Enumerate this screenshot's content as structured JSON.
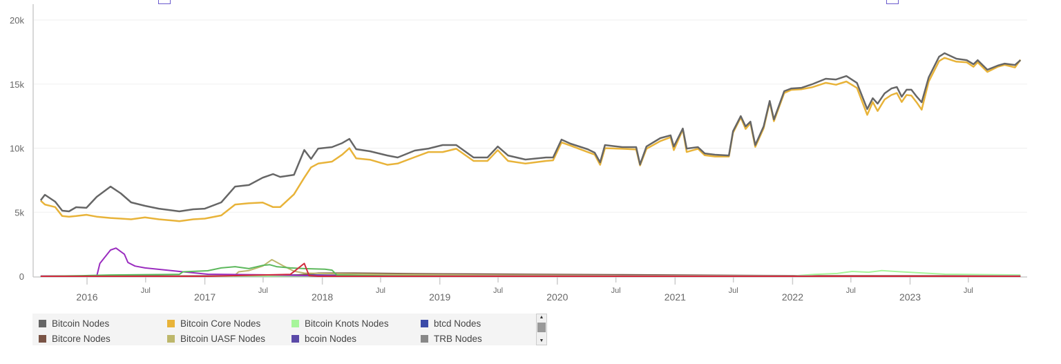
{
  "chart_data": {
    "type": "line",
    "title": "",
    "xlabel": "",
    "ylabel": "",
    "ylim": [
      0,
      20000
    ],
    "xlim": [
      "2015-08-01",
      "2023-12-31"
    ],
    "y_ticks": [
      "0",
      "5k",
      "10k",
      "15k",
      "20k"
    ],
    "y_tick_values": [
      0,
      5000,
      10000,
      15000,
      20000
    ],
    "x_ticks": [
      {
        "label": "2016",
        "date": "2016-01-01",
        "major": true
      },
      {
        "label": "Jul",
        "date": "2016-07-01",
        "major": false
      },
      {
        "label": "2017",
        "date": "2017-01-01",
        "major": true
      },
      {
        "label": "Jul",
        "date": "2017-07-01",
        "major": false
      },
      {
        "label": "2018",
        "date": "2018-01-01",
        "major": true
      },
      {
        "label": "Jul",
        "date": "2018-07-01",
        "major": false
      },
      {
        "label": "2019",
        "date": "2019-01-01",
        "major": true
      },
      {
        "label": "Jul",
        "date": "2019-07-01",
        "major": false
      },
      {
        "label": "2020",
        "date": "2020-01-01",
        "major": true
      },
      {
        "label": "Jul",
        "date": "2020-07-01",
        "major": false
      },
      {
        "label": "2021",
        "date": "2021-01-01",
        "major": true
      },
      {
        "label": "Jul",
        "date": "2021-07-01",
        "major": false
      },
      {
        "label": "2022",
        "date": "2022-01-01",
        "major": true
      },
      {
        "label": "Jul",
        "date": "2022-07-01",
        "major": false
      },
      {
        "label": "2023",
        "date": "2023-01-01",
        "major": true
      },
      {
        "label": "Jul",
        "date": "2023-07-01",
        "major": false
      }
    ],
    "grid": true,
    "legend_position": "bottom",
    "series": [
      {
        "name": "Bitcoin Nodes",
        "color": "#666666",
        "x": [
          "2015-08-10",
          "2015-08-23",
          "2015-09-24",
          "2015-10-16",
          "2015-11-06",
          "2015-11-28",
          "2015-12-30",
          "2016-01-31",
          "2016-03-14",
          "2016-04-15",
          "2016-05-17",
          "2016-06-29",
          "2016-08-11",
          "2016-10-14",
          "2016-11-26",
          "2017-01-01",
          "2017-02-21",
          "2017-04-05",
          "2017-05-18",
          "2017-06-30",
          "2017-08-01",
          "2017-08-23",
          "2017-10-05",
          "2017-11-06",
          "2017-11-27",
          "2017-12-19",
          "2018-01-31",
          "2018-03-04",
          "2018-03-26",
          "2018-04-16",
          "2018-05-29",
          "2018-07-22",
          "2018-08-23",
          "2018-10-15",
          "2018-11-27",
          "2019-01-10",
          "2019-02-21",
          "2019-04-16",
          "2019-05-29",
          "2019-06-30",
          "2019-08-01",
          "2019-09-24",
          "2019-11-27",
          "2019-12-19",
          "2020-01-14",
          "2020-02-11",
          "2020-04-04",
          "2020-04-26",
          "2020-05-13",
          "2020-05-28",
          "2020-07-21",
          "2020-09-02",
          "2020-09-14",
          "2020-10-04",
          "2020-11-16",
          "2020-12-18",
          "2020-12-28",
          "2021-01-25",
          "2021-02-06",
          "2021-03-13",
          "2021-04-03",
          "2021-05-05",
          "2021-06-17",
          "2021-06-30",
          "2021-07-24",
          "2021-08-08",
          "2021-08-23",
          "2021-09-07",
          "2021-10-03",
          "2021-10-22",
          "2021-11-04",
          "2021-12-06",
          "2021-12-28",
          "2022-01-29",
          "2022-03-02",
          "2022-04-14",
          "2022-05-16",
          "2022-06-17",
          "2022-07-20",
          "2022-08-21",
          "2022-09-07",
          "2022-09-22",
          "2022-10-14",
          "2022-11-04",
          "2022-11-21",
          "2022-12-06",
          "2022-12-21",
          "2023-01-05",
          "2023-01-22",
          "2023-02-06",
          "2023-02-28",
          "2023-04-01",
          "2023-04-18",
          "2023-05-25",
          "2023-06-26",
          "2023-07-17",
          "2023-07-30",
          "2023-08-29",
          "2023-09-30",
          "2023-10-22",
          "2023-11-23",
          "2023-12-10"
        ],
        "values": [
          5930,
          6360,
          5820,
          5120,
          5070,
          5390,
          5340,
          6200,
          7000,
          6470,
          5770,
          5500,
          5280,
          5070,
          5230,
          5280,
          5770,
          7000,
          7120,
          7700,
          7980,
          7760,
          7920,
          9860,
          9160,
          9970,
          10080,
          10400,
          10720,
          9920,
          9760,
          9430,
          9270,
          9810,
          9970,
          10240,
          10240,
          9270,
          9270,
          10130,
          9430,
          9110,
          9270,
          9270,
          10670,
          10350,
          9920,
          9650,
          8890,
          10240,
          10080,
          10080,
          8730,
          10130,
          10780,
          11000,
          10130,
          11530,
          9970,
          10080,
          9590,
          9490,
          9430,
          11320,
          12500,
          11700,
          12070,
          10240,
          11700,
          13690,
          12240,
          14450,
          14660,
          14710,
          14980,
          15420,
          15360,
          15630,
          15090,
          13050,
          13900,
          13470,
          14280,
          14660,
          14770,
          14010,
          14560,
          14560,
          14010,
          13580,
          15530,
          17140,
          17410,
          16980,
          16870,
          16550,
          16870,
          16120,
          16440,
          16600,
          16490,
          16870
        ]
      },
      {
        "name": "Bitcoin Core Nodes",
        "color": "#e8b339",
        "x": [
          "2015-08-10",
          "2015-08-23",
          "2015-09-24",
          "2015-10-16",
          "2015-11-06",
          "2015-11-28",
          "2015-12-30",
          "2016-01-31",
          "2016-03-14",
          "2016-04-15",
          "2016-05-17",
          "2016-06-29",
          "2016-08-11",
          "2016-10-14",
          "2016-11-26",
          "2017-01-01",
          "2017-02-21",
          "2017-04-05",
          "2017-05-18",
          "2017-06-30",
          "2017-08-01",
          "2017-08-23",
          "2017-10-05",
          "2017-11-06",
          "2017-11-27",
          "2017-12-19",
          "2018-01-31",
          "2018-03-04",
          "2018-03-26",
          "2018-04-16",
          "2018-05-29",
          "2018-07-22",
          "2018-08-23",
          "2018-10-15",
          "2018-11-27",
          "2019-01-10",
          "2019-02-21",
          "2019-04-16",
          "2019-05-29",
          "2019-06-30",
          "2019-08-01",
          "2019-09-24",
          "2019-11-27",
          "2019-12-19",
          "2020-01-14",
          "2020-02-11",
          "2020-04-04",
          "2020-04-26",
          "2020-05-13",
          "2020-05-28",
          "2020-07-21",
          "2020-09-02",
          "2020-09-14",
          "2020-10-04",
          "2020-11-16",
          "2020-12-18",
          "2020-12-28",
          "2021-01-25",
          "2021-02-06",
          "2021-03-13",
          "2021-04-03",
          "2021-05-05",
          "2021-06-17",
          "2021-06-30",
          "2021-07-24",
          "2021-08-08",
          "2021-08-23",
          "2021-09-07",
          "2021-10-03",
          "2021-10-22",
          "2021-11-04",
          "2021-12-06",
          "2021-12-28",
          "2022-01-29",
          "2022-03-02",
          "2022-04-14",
          "2022-05-16",
          "2022-06-17",
          "2022-07-20",
          "2022-08-21",
          "2022-09-07",
          "2022-09-22",
          "2022-10-14",
          "2022-11-04",
          "2022-11-21",
          "2022-12-06",
          "2022-12-21",
          "2023-01-05",
          "2023-01-22",
          "2023-02-06",
          "2023-02-28",
          "2023-04-01",
          "2023-04-18",
          "2023-05-25",
          "2023-06-26",
          "2023-07-17",
          "2023-07-30",
          "2023-08-29",
          "2023-09-30",
          "2023-10-22",
          "2023-11-23",
          "2023-12-10"
        ],
        "values": [
          5900,
          5600,
          5400,
          4700,
          4650,
          4700,
          4800,
          4650,
          4550,
          4500,
          4450,
          4600,
          4450,
          4300,
          4450,
          4500,
          4750,
          5600,
          5700,
          5750,
          5400,
          5400,
          6400,
          7700,
          8500,
          8800,
          8950,
          9500,
          10000,
          9200,
          9100,
          8700,
          8800,
          9300,
          9700,
          9700,
          9950,
          9000,
          9000,
          9850,
          9000,
          8800,
          9000,
          9050,
          10450,
          10200,
          9700,
          9500,
          8700,
          10000,
          9950,
          9900,
          8650,
          9950,
          10550,
          10850,
          9850,
          11450,
          9700,
          9950,
          9450,
          9350,
          9350,
          11200,
          12400,
          11500,
          11950,
          10100,
          11550,
          13600,
          12100,
          14300,
          14550,
          14600,
          14750,
          15100,
          14950,
          15200,
          14700,
          12600,
          13600,
          12900,
          13800,
          14150,
          14300,
          13600,
          14150,
          14100,
          13550,
          13000,
          15200,
          16800,
          17050,
          16750,
          16700,
          16350,
          16700,
          15950,
          16350,
          16500,
          16300,
          16900
        ]
      },
      {
        "name": "Bitcoin Knots Nodes",
        "color": "#a6f59a",
        "x": [
          "2015-08-10",
          "2019-05-08",
          "2022-01-05",
          "2022-03-10",
          "2022-05-20",
          "2022-07-05",
          "2022-08-25",
          "2022-10-05",
          "2022-11-15",
          "2023-01-20",
          "2023-04-20",
          "2023-12-10"
        ],
        "values": [
          0,
          20,
          30,
          150,
          220,
          380,
          320,
          440,
          380,
          280,
          160,
          100
        ]
      },
      {
        "name": "btcd Nodes",
        "color": "#3b4ba8",
        "x": [
          "2015-08-10",
          "2023-12-10"
        ],
        "values": [
          10,
          10
        ]
      },
      {
        "name": "Bitcore Nodes",
        "color": "#7a5446",
        "x": [
          "2015-08-10",
          "2017-09-24",
          "2017-12-19",
          "2018-04-10",
          "2018-10-15",
          "2019-05-08",
          "2020-07-21",
          "2021-10-01",
          "2023-12-10"
        ],
        "values": [
          0,
          50,
          250,
          250,
          200,
          170,
          120,
          60,
          30
        ]
      },
      {
        "name": "Bitcoin UASF Nodes",
        "color": "#bdb76b",
        "x": [
          "2015-08-10",
          "2017-04-01",
          "2017-04-16",
          "2017-05-18",
          "2017-06-30",
          "2017-07-28",
          "2017-09-03",
          "2017-10-05",
          "2017-11-06",
          "2018-01-31",
          "2018-07-22",
          "2019-05-08",
          "2020-07-21",
          "2023-12-10"
        ],
        "values": [
          0,
          0,
          350,
          450,
          800,
          1300,
          800,
          400,
          250,
          200,
          150,
          100,
          50,
          30
        ]
      },
      {
        "name": "bcoin Nodes",
        "color": "#5b4aa8",
        "x": [
          "2015-08-10",
          "2017-06-01",
          "2017-11-01",
          "2018-06-01",
          "2023-12-10"
        ],
        "values": [
          0,
          40,
          120,
          40,
          20
        ]
      },
      {
        "name": "TRB Nodes",
        "color": "#888888",
        "x": [
          "2015-08-10",
          "2023-12-10"
        ],
        "values": [
          5,
          5
        ]
      },
      {
        "color": "#9a2cbf",
        "x": [
          "2015-08-10",
          "2016-01-31",
          "2016-02-10",
          "2016-03-14",
          "2016-03-31",
          "2016-04-26",
          "2016-05-07",
          "2016-05-29",
          "2016-06-29",
          "2016-10-14",
          "2017-01-10",
          "2017-08-10",
          "2017-11-27",
          "2018-06-01",
          "2023-12-10"
        ],
        "values": [
          0,
          0,
          1000,
          2050,
          2200,
          1720,
          1080,
          800,
          650,
          380,
          160,
          100,
          50,
          10,
          10
        ]
      },
      {
        "color": "#5cb85c",
        "x": [
          "2015-08-10",
          "2015-12-17",
          "2016-03-14",
          "2016-10-14",
          "2016-10-25",
          "2017-01-10",
          "2017-02-21",
          "2017-04-05",
          "2017-05-18",
          "2017-06-30",
          "2017-07-22",
          "2017-08-12",
          "2017-09-24",
          "2017-11-06",
          "2018-01-09",
          "2018-01-31",
          "2018-02-15",
          "2018-07-22",
          "2019-05-08",
          "2023-12-10"
        ],
        "values": [
          0,
          50,
          100,
          150,
          350,
          430,
          650,
          750,
          600,
          850,
          900,
          750,
          650,
          600,
          550,
          480,
          100,
          30,
          0,
          0
        ]
      },
      {
        "color": "#d0293d",
        "x": [
          "2015-08-10",
          "2017-01-10",
          "2017-06-30",
          "2017-09-24",
          "2017-11-06",
          "2017-11-21",
          "2017-12-19",
          "2023-12-10"
        ],
        "values": [
          0,
          0,
          100,
          150,
          1000,
          50,
          0,
          0
        ]
      }
    ]
  },
  "legend": {
    "items": [
      {
        "label": "Bitcoin Nodes",
        "color": "#666666"
      },
      {
        "label": "Bitcoin Core Nodes",
        "color": "#e8b339"
      },
      {
        "label": "Bitcoin Knots Nodes",
        "color": "#a6f59a"
      },
      {
        "label": "btcd Nodes",
        "color": "#3b4ba8"
      },
      {
        "label": "Bitcore Nodes",
        "color": "#7a5446"
      },
      {
        "label": "Bitcoin UASF Nodes",
        "color": "#bdb76b"
      },
      {
        "label": "bcoin Nodes",
        "color": "#5b4aa8"
      },
      {
        "label": "TRB Nodes",
        "color": "#888888"
      }
    ],
    "scroll_up_icon": "triangle-up",
    "scroll_down_icon": "triangle-down"
  }
}
